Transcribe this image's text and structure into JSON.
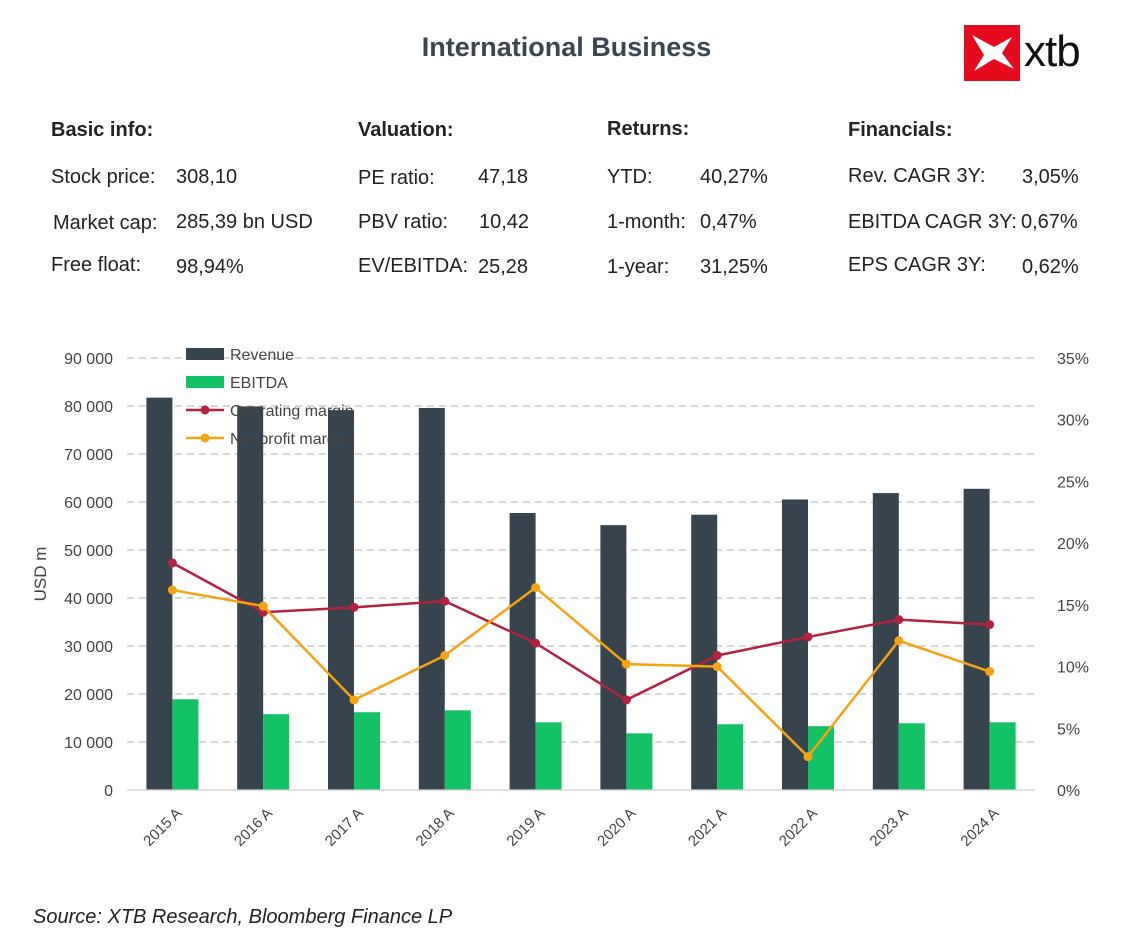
{
  "title": "International Business",
  "logo": {
    "text": "xtb",
    "color": "#e60b1c"
  },
  "info": {
    "basic": {
      "heading": "Basic info:",
      "rows": [
        {
          "label": "Stock price:",
          "value": "308,10"
        },
        {
          "label": "Market cap:",
          "value": "285,39 bn USD"
        },
        {
          "label": "Free float:",
          "value": "98,94%"
        }
      ]
    },
    "valuation": {
      "heading": "Valuation:",
      "rows": [
        {
          "label": "PE ratio:",
          "value": "47,18"
        },
        {
          "label": "PBV ratio:",
          "value": "10,42"
        },
        {
          "label": "EV/EBITDA:",
          "value": "25,28"
        }
      ]
    },
    "returns": {
      "heading": "Returns:",
      "rows": [
        {
          "label": "YTD:",
          "value": "40,27%"
        },
        {
          "label": "1-month:",
          "value": "0,47%"
        },
        {
          "label": "1-year:",
          "value": "31,25%"
        }
      ]
    },
    "financials": {
      "heading": "Financials:",
      "rows": [
        {
          "label": "Rev. CAGR 3Y:",
          "value": "3,05%"
        },
        {
          "label": "EBITDA CAGR 3Y:",
          "value": "0,67%"
        },
        {
          "label": "EPS CAGR 3Y:",
          "value": "0,62%"
        }
      ]
    }
  },
  "chart_data": {
    "type": "bar",
    "categories": [
      "2015 A",
      "2016 A",
      "2017 A",
      "2018 A",
      "2019 A",
      "2020 A",
      "2021 A",
      "2022 A",
      "2023 A",
      "2024 A"
    ],
    "series": [
      {
        "name": "Revenue",
        "type": "bar",
        "axis": "left",
        "color": "#37444e",
        "values": [
          81741,
          79919,
          79139,
          79591,
          57714,
          55179,
          57350,
          60530,
          61860,
          62753
        ]
      },
      {
        "name": "EBITDA",
        "type": "bar",
        "axis": "left",
        "color": "#12c265",
        "values": [
          18900,
          15800,
          16200,
          16600,
          14100,
          11800,
          13700,
          13300,
          13900,
          14100
        ]
      },
      {
        "name": "Operating margin",
        "type": "line",
        "axis": "right",
        "color": "#b5213f",
        "values": [
          18.4,
          14.4,
          14.8,
          15.3,
          11.9,
          7.3,
          10.9,
          12.4,
          13.8,
          13.4
        ]
      },
      {
        "name": "Net profit margin",
        "type": "line",
        "axis": "right",
        "color": "#f5a30f",
        "values": [
          16.2,
          14.9,
          7.3,
          10.9,
          16.4,
          10.2,
          10.0,
          2.7,
          12.1,
          9.6
        ]
      }
    ],
    "ylabel": "USD m",
    "xlabel": "",
    "ylim": [
      0,
      90000
    ],
    "yticks": [
      "0",
      "10 000",
      "20 000",
      "30 000",
      "40 000",
      "50 000",
      "60 000",
      "70 000",
      "80 000",
      "90 000"
    ],
    "y2lim": [
      0,
      35
    ],
    "y2ticks": [
      "0%",
      "5%",
      "10%",
      "15%",
      "20%",
      "25%",
      "30%",
      "35%"
    ],
    "legend": "top-left",
    "grid": true
  },
  "source": "Source: XTB Research, Bloomberg Finance LP"
}
